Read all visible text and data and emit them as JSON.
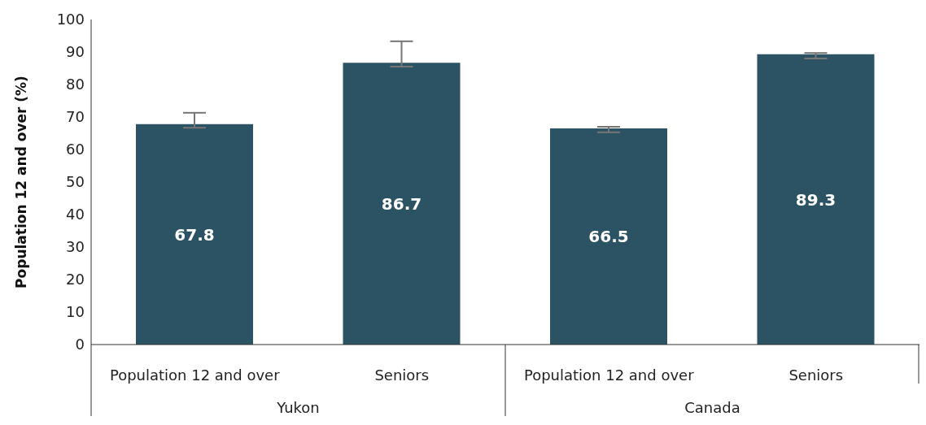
{
  "chart_data": {
    "type": "bar",
    "categories": [
      "Population 12 and over",
      "Seniors",
      "Population 12 and over",
      "Seniors"
    ],
    "values": [
      67.8,
      86.7,
      66.5,
      89.3
    ],
    "errors": [
      [
        66.7,
        71.3
      ],
      [
        85.5,
        93.3
      ],
      [
        65.3,
        67.0
      ],
      [
        88.0,
        89.7
      ]
    ],
    "color": "#2b5363",
    "ylabel": "Population 12 and over (%)",
    "ylim": [
      0,
      100
    ],
    "yticks": [
      0,
      10,
      20,
      30,
      40,
      50,
      60,
      70,
      80,
      90,
      100
    ],
    "annotations": [
      "Yukon",
      "Canada"
    ],
    "data_labels": true,
    "grid": false,
    "legend": false
  }
}
